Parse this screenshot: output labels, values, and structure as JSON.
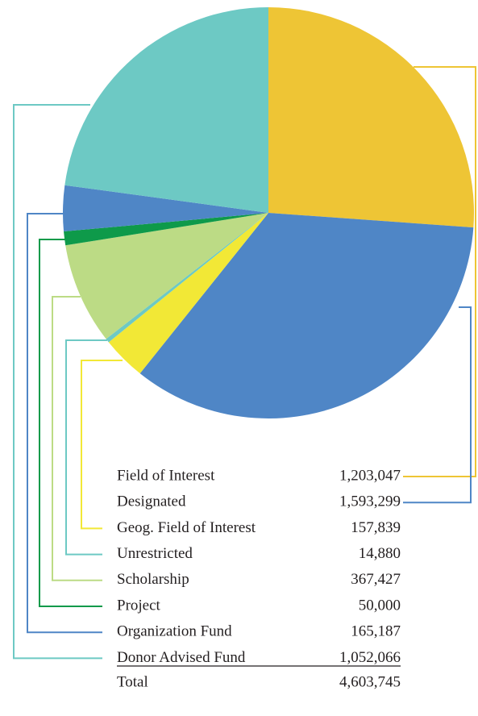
{
  "chart_data": {
    "type": "pie",
    "categories": [
      "Field of Interest",
      "Designated",
      "Geog. Field of Interest",
      "Unrestricted",
      "Scholarship",
      "Project",
      "Organization Fund",
      "Donor Advised Fund"
    ],
    "values": [
      1203047,
      1593299,
      157839,
      14880,
      367427,
      50000,
      165187,
      1052066
    ],
    "value_labels": [
      "1,203,047",
      "1,593,299",
      "157,839",
      "14,880",
      "367,427",
      "50,000",
      "165,187",
      "1,052,066"
    ],
    "colors": [
      "#eec535",
      "#4f86c6",
      "#f2e836",
      "#6dc9c4",
      "#bcdb85",
      "#0e9a4a",
      "#4f86c6",
      "#6dc9c4"
    ],
    "total_label": "Total",
    "total": "4,603,745"
  }
}
